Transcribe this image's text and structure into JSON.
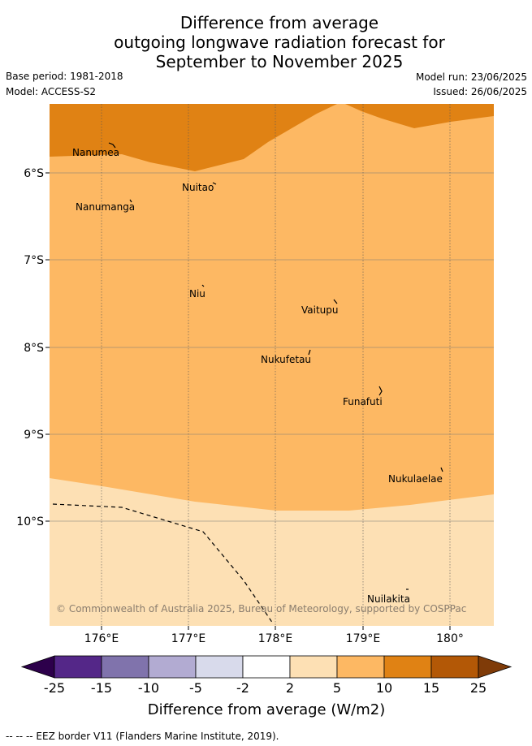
{
  "title": {
    "line1": "Difference from average",
    "line2": "outgoing longwave radiation forecast for",
    "line3": "September to November 2025"
  },
  "meta": {
    "base_period": "Base period: 1981-2018",
    "model": "Model: ACCESS-S2",
    "model_run": "Model run: 23/06/2025",
    "issued": "Issued: 26/06/2025"
  },
  "map": {
    "lon_ticks": [
      "176°E",
      "177°E",
      "178°E",
      "179°E",
      "180°"
    ],
    "lat_ticks": [
      "6°S",
      "7°S",
      "8°S",
      "9°S",
      "10°S"
    ],
    "places": [
      "Nanumea",
      "Nuitao",
      "Nanumanga",
      "Niu",
      "Vaitupu",
      "Nukufetau",
      "Funafuti",
      "Nukulaelae",
      "Nuilakita"
    ],
    "copyright": "© Commonwealth of Australia 2025, Bureau of Meteorology, supported by COSPPac",
    "colors": {
      "band_2_5": "#fde0b4",
      "band_5_10": "#fdb863",
      "band_10_15": "#e08214"
    }
  },
  "colorbar": {
    "labels": [
      "-25",
      "-15",
      "-10",
      "-5",
      "-2",
      "2",
      "5",
      "10",
      "15",
      "25"
    ],
    "colors": [
      "#2d004b",
      "#542788",
      "#8073ac",
      "#b2abd2",
      "#d8daeb",
      "#ffffff",
      "#fde0b4",
      "#fdb863",
      "#e08214",
      "#b35806",
      "#7f3b08"
    ],
    "title": "Difference from average (W/m2)"
  },
  "footer": "-- -- -- EEZ border V11 (Flanders Marine Institute, 2019)."
}
